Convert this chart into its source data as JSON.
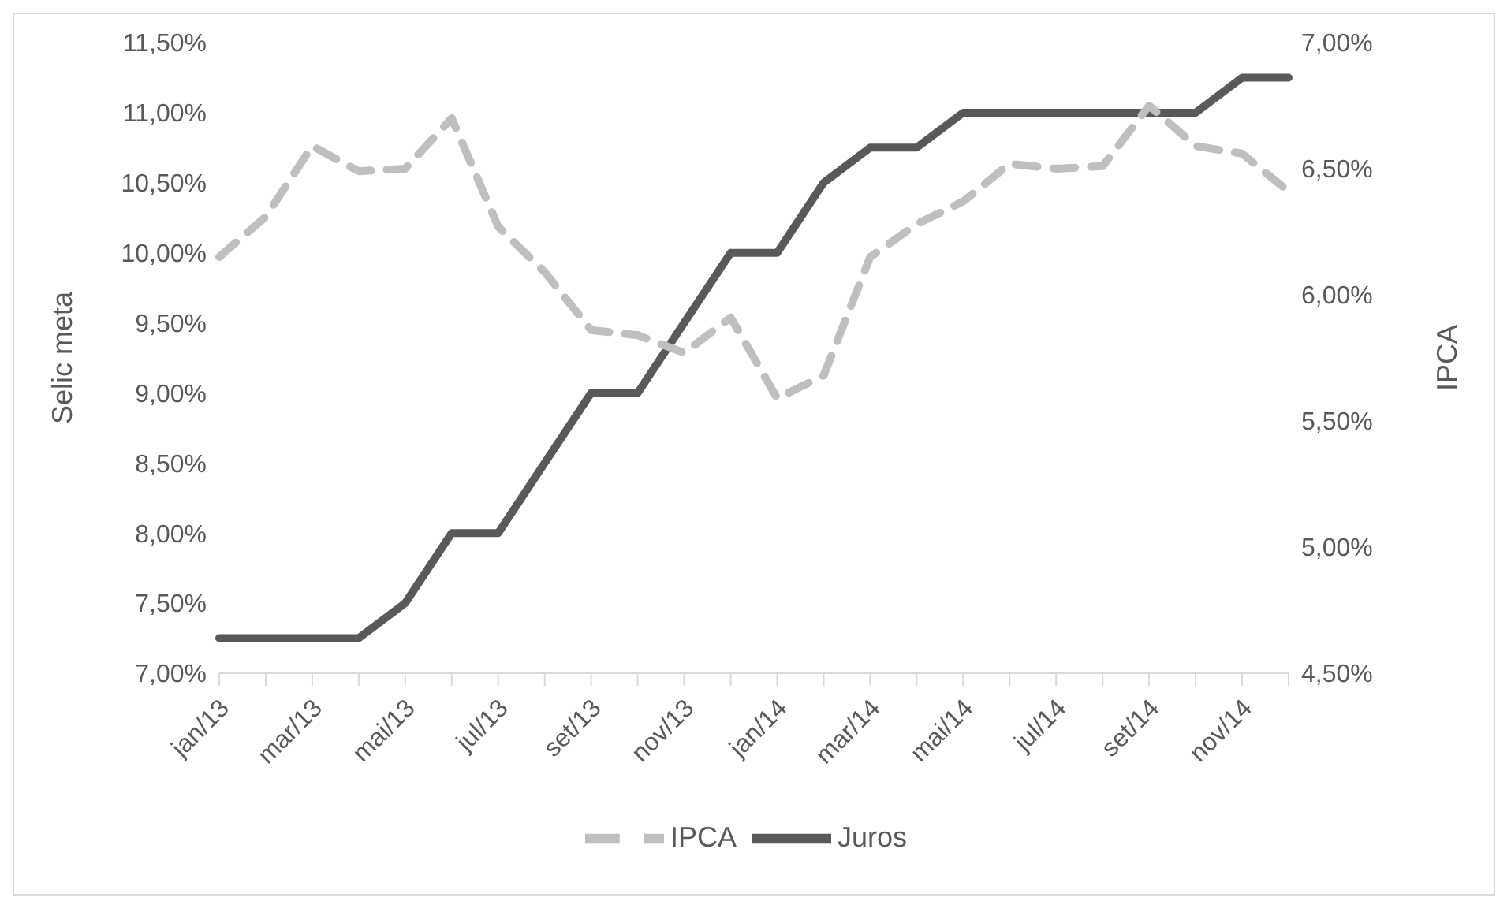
{
  "chart_data": {
    "type": "line",
    "ylabel": "Selic meta",
    "y2label": "IPCA",
    "categories": [
      "jan/13",
      null,
      "mar/13",
      null,
      "mai/13",
      null,
      "jul/13",
      null,
      "set/13",
      null,
      "nov/13",
      null,
      "jan/14",
      null,
      "mar/14",
      null,
      "mai/14",
      null,
      "jul/14",
      null,
      "set/14",
      null,
      "nov/14",
      null
    ],
    "series": [
      {
        "name": "Juros",
        "color": "#595959",
        "line_style": "solid",
        "values": [
          7.25,
          7.25,
          7.25,
          7.25,
          7.5,
          8.0,
          8.0,
          8.5,
          9.0,
          9.0,
          9.5,
          10.0,
          10.0,
          10.5,
          10.75,
          10.75,
          11.0,
          11.0,
          11.0,
          11.0,
          11.0,
          11.0,
          11.25,
          11.25
        ]
      },
      {
        "name": "IPCA",
        "color": "#bfbfbf",
        "line_style": "dashed",
        "axis": "y2",
        "values": [
          6.15,
          6.31,
          6.59,
          6.49,
          6.5,
          6.7,
          6.27,
          6.09,
          5.86,
          5.84,
          5.77,
          5.91,
          5.59,
          5.68,
          6.15,
          6.28,
          6.37,
          6.52,
          6.5,
          6.51,
          6.75,
          6.59,
          6.56,
          6.41
        ]
      }
    ],
    "ylim": [
      7.0,
      11.5
    ],
    "yticks": [
      {
        "value": 7.0,
        "label": "7,00%"
      },
      {
        "value": 7.5,
        "label": "7,50%"
      },
      {
        "value": 8.0,
        "label": "8,00%"
      },
      {
        "value": 8.5,
        "label": "8,50%"
      },
      {
        "value": 9.0,
        "label": "9,00%"
      },
      {
        "value": 9.5,
        "label": "9,50%"
      },
      {
        "value": 10.0,
        "label": "10,00%"
      },
      {
        "value": 10.5,
        "label": "10,50%"
      },
      {
        "value": 11.0,
        "label": "11,00%"
      },
      {
        "value": 11.5,
        "label": "11,50%"
      }
    ],
    "y2lim": [
      4.5,
      7.0
    ],
    "y2ticks": [
      {
        "value": 4.5,
        "label": "4,50%"
      },
      {
        "value": 5.0,
        "label": "5,00%"
      },
      {
        "value": 5.5,
        "label": "5,50%"
      },
      {
        "value": 6.0,
        "label": "6,00%"
      },
      {
        "value": 6.5,
        "label": "6,50%"
      },
      {
        "value": 7.0,
        "label": "7,00%"
      }
    ],
    "marker": "none",
    "grid": false,
    "legend": "bottom"
  }
}
